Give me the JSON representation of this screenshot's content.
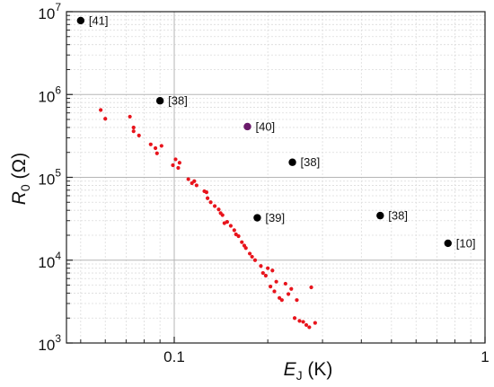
{
  "chart_data": {
    "type": "scatter",
    "xscale": "log",
    "yscale": "log",
    "xlim": [
      0.045,
      1
    ],
    "ylim": [
      1000,
      10000000
    ],
    "grid": true,
    "xlabel": {
      "main": "E",
      "sub": "J",
      "unit": " (K)"
    },
    "ylabel": {
      "main": "R",
      "sub": "0",
      "unit": " (Ω)"
    },
    "x_ticks": [
      {
        "value": 0.1,
        "label": "0.1"
      },
      {
        "value": 1,
        "label": "1"
      }
    ],
    "y_ticks": [
      {
        "value": 1000,
        "base": "10",
        "exp": "3"
      },
      {
        "value": 10000,
        "base": "10",
        "exp": "4"
      },
      {
        "value": 100000,
        "base": "10",
        "exp": "5"
      },
      {
        "value": 1000000,
        "base": "10",
        "exp": "6"
      },
      {
        "value": 10000000,
        "base": "10",
        "exp": "7"
      }
    ],
    "series": [
      {
        "color": "#e8141c",
        "marker": "small-dot",
        "points": [
          [
            0.058,
            650000
          ],
          [
            0.06,
            510000
          ],
          [
            0.072,
            540000
          ],
          [
            0.074,
            400000
          ],
          [
            0.074,
            360000
          ],
          [
            0.077,
            320000
          ],
          [
            0.084,
            250000
          ],
          [
            0.087,
            225000
          ],
          [
            0.088,
            195000
          ],
          [
            0.091,
            240000
          ],
          [
            0.099,
            140000
          ],
          [
            0.101,
            165000
          ],
          [
            0.103,
            130000
          ],
          [
            0.104,
            150000
          ],
          [
            0.111,
            95000
          ],
          [
            0.114,
            85000
          ],
          [
            0.116,
            90000
          ],
          [
            0.118,
            80000
          ],
          [
            0.125,
            68000
          ],
          [
            0.127,
            66000
          ],
          [
            0.128,
            56000
          ],
          [
            0.131,
            50000
          ],
          [
            0.135,
            45000
          ],
          [
            0.139,
            41000
          ],
          [
            0.141,
            37000
          ],
          [
            0.143,
            35000
          ],
          [
            0.145,
            28000
          ],
          [
            0.148,
            29000
          ],
          [
            0.152,
            26000
          ],
          [
            0.156,
            23000
          ],
          [
            0.158,
            20500
          ],
          [
            0.161,
            19500
          ],
          [
            0.165,
            16500
          ],
          [
            0.168,
            15000
          ],
          [
            0.17,
            14000
          ],
          [
            0.175,
            12000
          ],
          [
            0.178,
            11000
          ],
          [
            0.182,
            10000
          ],
          [
            0.19,
            8500
          ],
          [
            0.193,
            7000
          ],
          [
            0.197,
            6500
          ],
          [
            0.2,
            8000
          ],
          [
            0.204,
            4800
          ],
          [
            0.207,
            7500
          ],
          [
            0.21,
            4200
          ],
          [
            0.213,
            5500
          ],
          [
            0.218,
            3500
          ],
          [
            0.222,
            3300
          ],
          [
            0.228,
            5200
          ],
          [
            0.233,
            3900
          ],
          [
            0.238,
            4500
          ],
          [
            0.244,
            2000
          ],
          [
            0.248,
            3300
          ],
          [
            0.253,
            1850
          ],
          [
            0.26,
            1800
          ],
          [
            0.266,
            1650
          ],
          [
            0.272,
            1550
          ],
          [
            0.276,
            4700
          ],
          [
            0.284,
            1750
          ]
        ]
      }
    ],
    "annotated_points": [
      {
        "x": 0.05,
        "y": 7800000,
        "label": "[41]",
        "color": "#000000"
      },
      {
        "x": 0.09,
        "y": 840000,
        "label": "[38]",
        "color": "#000000"
      },
      {
        "x": 0.172,
        "y": 410000,
        "label": "[40]",
        "color": "#6a1a6a"
      },
      {
        "x": 0.24,
        "y": 152000,
        "label": "[38]",
        "color": "#000000"
      },
      {
        "x": 0.185,
        "y": 32500,
        "label": "[39]",
        "color": "#000000"
      },
      {
        "x": 0.46,
        "y": 34500,
        "label": "[38]",
        "color": "#000000"
      },
      {
        "x": 0.76,
        "y": 16000,
        "label": "[10]",
        "color": "#000000"
      }
    ]
  }
}
